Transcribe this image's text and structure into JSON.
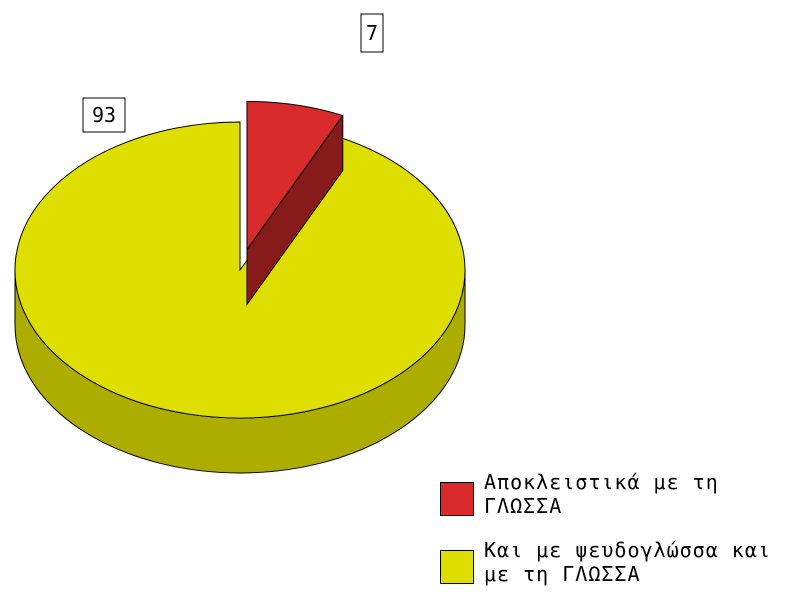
{
  "chart_data": {
    "type": "pie",
    "style": "3d-exploded",
    "series": [
      {
        "values": [
          7,
          93
        ],
        "labels": [
          "7",
          "93"
        ]
      }
    ],
    "categories": [
      "Αποκλειστικά με τη ΓΛΩΣΣΑ",
      "Και με ψευδογλώσσα και με τη ΓΛΩΣΣΑ"
    ],
    "colors": [
      "#d92b2b",
      "#dede00"
    ],
    "legend_placement": "bottom-right",
    "title": "",
    "xlabel": "",
    "ylabel": ""
  }
}
